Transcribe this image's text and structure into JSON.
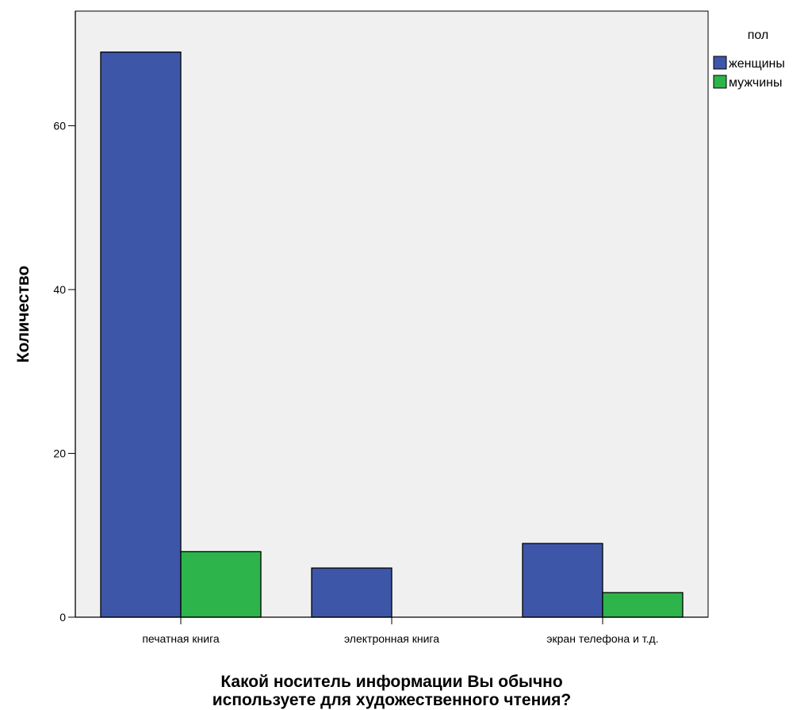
{
  "chart_data": {
    "type": "bar",
    "categories": [
      "печатная книга",
      "электронная книга",
      "экран телефона и т.д."
    ],
    "series": [
      {
        "name": "женщины",
        "values": [
          69,
          6,
          9
        ],
        "color": "#3e56a8"
      },
      {
        "name": "мужчины",
        "values": [
          8,
          0,
          3
        ],
        "color": "#2db44a"
      }
    ],
    "xlabel_lines": [
      "Какой носитель информации Вы обычно",
      "используете для художественного чтения?"
    ],
    "ylabel": "Количество",
    "ylim": [
      0,
      74
    ],
    "yticks": [
      0,
      20,
      40,
      60
    ],
    "legend_title": "пол",
    "legend_position": "top-right",
    "plot_background": "#f0f0f0",
    "grid": false
  }
}
